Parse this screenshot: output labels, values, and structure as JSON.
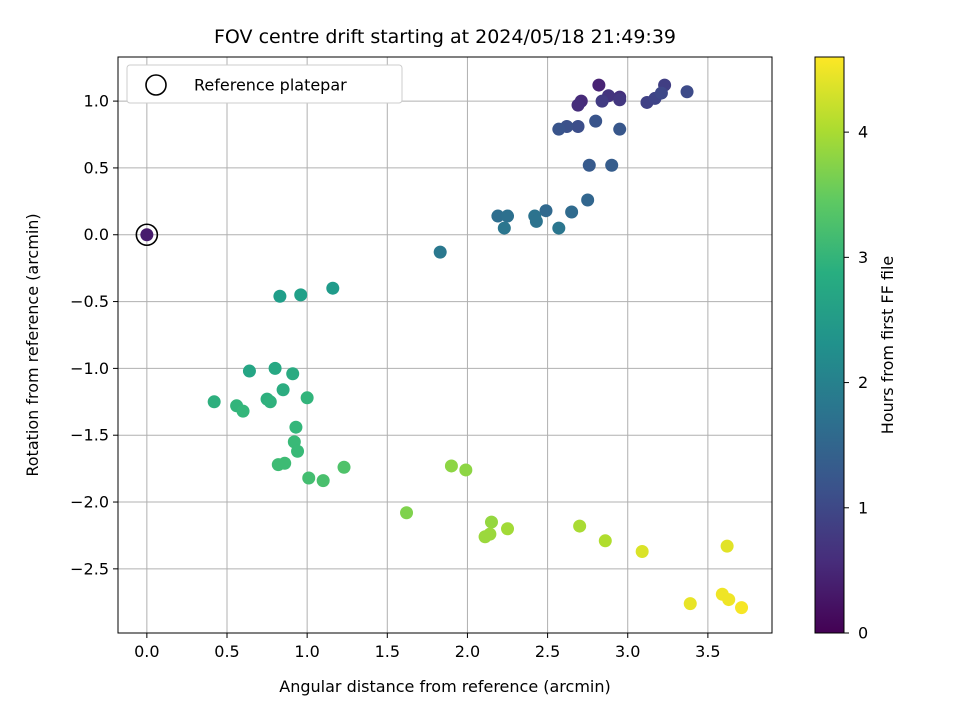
{
  "chart_data": {
    "type": "scatter",
    "title": "FOV centre drift starting at 2024/05/18 21:49:39",
    "xlabel": "Angular distance from reference (arcmin)",
    "ylabel": "Rotation from reference (arcmin)",
    "xlim": [
      -0.18,
      3.9
    ],
    "ylim": [
      -2.98,
      1.33
    ],
    "xticks": [
      0.0,
      0.5,
      1.0,
      1.5,
      2.0,
      2.5,
      3.0,
      3.5
    ],
    "xtick_labels": [
      "0.0",
      "0.5",
      "1.0",
      "1.5",
      "2.0",
      "2.5",
      "3.0",
      "3.5"
    ],
    "yticks": [
      1.0,
      0.5,
      0.0,
      -0.5,
      -1.0,
      -1.5,
      -2.0,
      -2.5
    ],
    "ytick_labels": [
      "1.0",
      "0.5",
      "0.0",
      "−0.5",
      "−1.0",
      "−1.5",
      "−2.0",
      "−2.5"
    ],
    "grid": true,
    "colormap": "viridis",
    "colorbar": {
      "label": "Hours from first FF file",
      "range": [
        0,
        4.6
      ],
      "ticks": [
        0,
        1,
        2,
        3,
        4
      ],
      "tick_labels": [
        "0",
        "1",
        "2",
        "3",
        "4"
      ]
    },
    "legend": {
      "placement": "top-left",
      "entries": [
        "Reference platepar"
      ]
    },
    "reference_point": {
      "x": 0.0,
      "y": 0.0
    },
    "points": [
      {
        "x": 0.0,
        "y": 0.0,
        "t": 0.35
      },
      {
        "x": 2.82,
        "y": 1.12,
        "t": 0.45
      },
      {
        "x": 2.71,
        "y": 1.0,
        "t": 0.55
      },
      {
        "x": 2.69,
        "y": 0.97,
        "t": 0.6
      },
      {
        "x": 2.95,
        "y": 1.03,
        "t": 0.65
      },
      {
        "x": 2.88,
        "y": 1.04,
        "t": 0.7
      },
      {
        "x": 2.95,
        "y": 1.01,
        "t": 0.75
      },
      {
        "x": 2.84,
        "y": 1.0,
        "t": 0.8
      },
      {
        "x": 3.23,
        "y": 1.12,
        "t": 0.85
      },
      {
        "x": 3.12,
        "y": 0.99,
        "t": 0.9
      },
      {
        "x": 3.17,
        "y": 1.02,
        "t": 0.95
      },
      {
        "x": 3.21,
        "y": 1.06,
        "t": 1.0
      },
      {
        "x": 3.37,
        "y": 1.07,
        "t": 1.05
      },
      {
        "x": 2.69,
        "y": 0.81,
        "t": 1.1
      },
      {
        "x": 2.62,
        "y": 0.81,
        "t": 1.15
      },
      {
        "x": 2.57,
        "y": 0.79,
        "t": 1.2
      },
      {
        "x": 2.8,
        "y": 0.85,
        "t": 1.2
      },
      {
        "x": 2.95,
        "y": 0.79,
        "t": 1.25
      },
      {
        "x": 2.76,
        "y": 0.52,
        "t": 1.3
      },
      {
        "x": 2.9,
        "y": 0.52,
        "t": 1.35
      },
      {
        "x": 2.75,
        "y": 0.26,
        "t": 1.5
      },
      {
        "x": 2.49,
        "y": 0.18,
        "t": 1.55
      },
      {
        "x": 2.65,
        "y": 0.17,
        "t": 1.6
      },
      {
        "x": 2.19,
        "y": 0.14,
        "t": 1.65
      },
      {
        "x": 2.25,
        "y": 0.14,
        "t": 1.7
      },
      {
        "x": 2.42,
        "y": 0.14,
        "t": 1.75
      },
      {
        "x": 2.43,
        "y": 0.1,
        "t": 1.75
      },
      {
        "x": 2.23,
        "y": 0.05,
        "t": 1.8
      },
      {
        "x": 2.57,
        "y": 0.05,
        "t": 1.8
      },
      {
        "x": 1.83,
        "y": -0.13,
        "t": 1.85
      },
      {
        "x": 1.16,
        "y": -0.4,
        "t": 2.5
      },
      {
        "x": 0.83,
        "y": -0.46,
        "t": 2.55
      },
      {
        "x": 0.96,
        "y": -0.45,
        "t": 2.6
      },
      {
        "x": 0.64,
        "y": -1.02,
        "t": 2.7
      },
      {
        "x": 0.8,
        "y": -1.0,
        "t": 2.75
      },
      {
        "x": 0.91,
        "y": -1.04,
        "t": 2.8
      },
      {
        "x": 0.85,
        "y": -1.16,
        "t": 2.85
      },
      {
        "x": 0.42,
        "y": -1.25,
        "t": 2.9
      },
      {
        "x": 0.75,
        "y": -1.23,
        "t": 2.9
      },
      {
        "x": 0.77,
        "y": -1.25,
        "t": 2.95
      },
      {
        "x": 0.56,
        "y": -1.28,
        "t": 3.0
      },
      {
        "x": 1.0,
        "y": -1.22,
        "t": 3.0
      },
      {
        "x": 0.6,
        "y": -1.32,
        "t": 3.05
      },
      {
        "x": 0.93,
        "y": -1.44,
        "t": 3.05
      },
      {
        "x": 0.92,
        "y": -1.55,
        "t": 3.1
      },
      {
        "x": 0.94,
        "y": -1.62,
        "t": 3.1
      },
      {
        "x": 0.82,
        "y": -1.72,
        "t": 3.15
      },
      {
        "x": 0.86,
        "y": -1.71,
        "t": 3.15
      },
      {
        "x": 1.01,
        "y": -1.82,
        "t": 3.2
      },
      {
        "x": 1.1,
        "y": -1.84,
        "t": 3.25
      },
      {
        "x": 1.23,
        "y": -1.74,
        "t": 3.3
      },
      {
        "x": 1.62,
        "y": -2.08,
        "t": 3.7
      },
      {
        "x": 1.9,
        "y": -1.73,
        "t": 3.8
      },
      {
        "x": 1.99,
        "y": -1.76,
        "t": 3.8
      },
      {
        "x": 2.15,
        "y": -2.15,
        "t": 3.85
      },
      {
        "x": 2.11,
        "y": -2.26,
        "t": 3.9
      },
      {
        "x": 2.14,
        "y": -2.24,
        "t": 3.9
      },
      {
        "x": 2.25,
        "y": -2.2,
        "t": 3.95
      },
      {
        "x": 2.7,
        "y": -2.18,
        "t": 4.0
      },
      {
        "x": 2.86,
        "y": -2.29,
        "t": 4.05
      },
      {
        "x": 3.09,
        "y": -2.37,
        "t": 4.35
      },
      {
        "x": 3.62,
        "y": -2.33,
        "t": 4.4
      },
      {
        "x": 3.39,
        "y": -2.76,
        "t": 4.45
      },
      {
        "x": 3.59,
        "y": -2.69,
        "t": 4.5
      },
      {
        "x": 3.63,
        "y": -2.73,
        "t": 4.5
      },
      {
        "x": 3.71,
        "y": -2.79,
        "t": 4.55
      }
    ]
  }
}
